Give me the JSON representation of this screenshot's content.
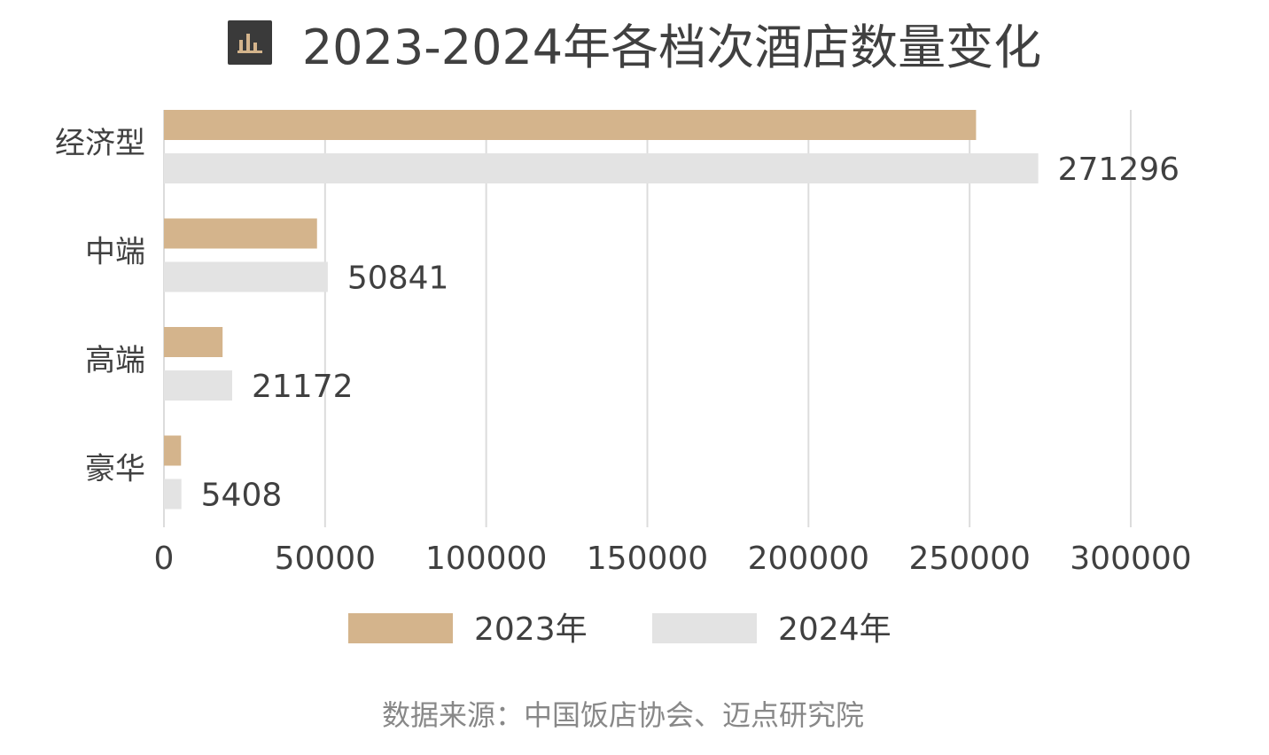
{
  "title": "2023-2024年各档次酒店数量变化",
  "icon": "bar-chart-icon",
  "source": "数据来源：中国饭店协会、迈点研究院",
  "colors": {
    "series_2023": "#d4b48c",
    "series_2024": "#e3e3e3",
    "grid": "#dcdcdc",
    "text": "#404040"
  },
  "chart_data": {
    "type": "bar",
    "orientation": "horizontal",
    "categories": [
      "经济型",
      "中端",
      "高端",
      "豪华"
    ],
    "series": [
      {
        "name": "2023年",
        "values": [
          252000,
          47500,
          18200,
          5300
        ]
      },
      {
        "name": "2024年",
        "values": [
          271296,
          50841,
          21172,
          5408
        ]
      }
    ],
    "data_labels": {
      "series_index": 1,
      "labels": [
        "271296",
        "50841",
        "21172",
        "5408"
      ]
    },
    "xlim": [
      0,
      300000
    ],
    "x_ticks": [
      "0",
      "50000",
      "100000",
      "150000",
      "200000",
      "250000",
      "300000"
    ],
    "grid": true,
    "legend": "bottom"
  }
}
